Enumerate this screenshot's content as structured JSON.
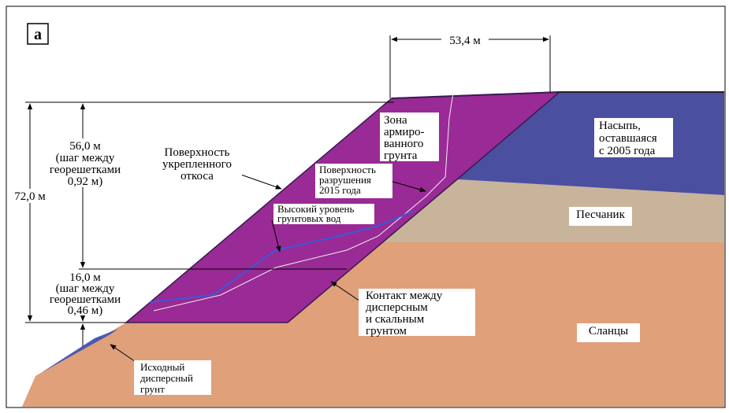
{
  "panel_label": "а",
  "dimensions": {
    "crest_width": "53,4 м",
    "total_height": "72,0 м",
    "upper": [
      "56,0 м",
      "(шаг между",
      "георешетками",
      "0,92 м)"
    ],
    "lower": [
      "16,0 м",
      "(шаг между",
      "георешетками",
      "0,46 м)"
    ]
  },
  "labels": {
    "slope_surface": [
      "Поверхность",
      "укрепленного",
      "откоса"
    ],
    "reinforced_zone": [
      "Зона",
      "армиро-",
      "ванного",
      "грунта"
    ],
    "failure_surface": [
      "Поверхность",
      "разрушения",
      "2015 года"
    ],
    "groundwater": [
      "Высокий уровень",
      "грунтовых вод"
    ],
    "embankment": [
      "Насыпь,",
      "оставшаяся",
      "с 2005 года"
    ],
    "sandstone": [
      "Песчаник"
    ],
    "contact": [
      "Контакт между",
      "дисперсным",
      "и скальным",
      "грунтом"
    ],
    "shale": [
      "Сланцы"
    ],
    "initial_soil": [
      "Исходный",
      "дисперсный",
      "грунт"
    ]
  }
}
